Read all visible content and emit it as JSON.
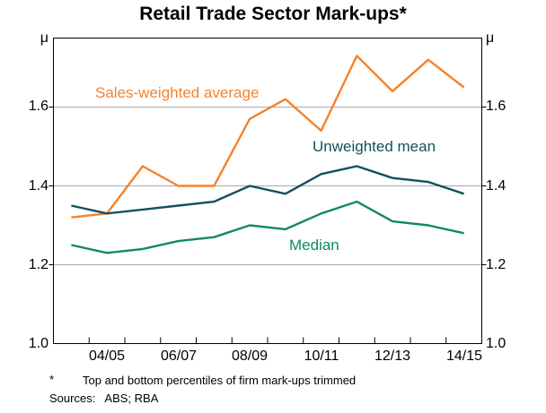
{
  "title": "Retail Trade Sector Mark-ups*",
  "axes": {
    "unit_left": "μ",
    "unit_right": "μ",
    "y_tick_labels": [
      "1.6",
      "1.4",
      "1.2",
      "1.0"
    ],
    "x_tick_labels": [
      "04/05",
      "06/07",
      "08/09",
      "10/11",
      "12/13",
      "14/15"
    ]
  },
  "chart_data": {
    "type": "line",
    "title": "Retail Trade Sector Mark-ups*",
    "x_categories": [
      "03/04",
      "04/05",
      "05/06",
      "06/07",
      "07/08",
      "08/09",
      "09/10",
      "10/11",
      "11/12",
      "12/13",
      "13/14",
      "14/15"
    ],
    "x_axis_labeled_ticks": [
      "04/05",
      "06/07",
      "08/09",
      "10/11",
      "12/13",
      "14/15"
    ],
    "ylim": [
      1.0,
      1.775
    ],
    "y_ticks": [
      1.6,
      1.4,
      1.2,
      1.0
    ],
    "y_gridlines": [
      1.6,
      1.4,
      1.2
    ],
    "y_unit": "μ",
    "grid": "horizontal",
    "legend_position": "inline-labels",
    "series": [
      {
        "name": "Sales-weighted average",
        "color": "#F5822B",
        "values": [
          1.32,
          1.33,
          1.45,
          1.4,
          1.4,
          1.57,
          1.62,
          1.54,
          1.73,
          1.64,
          1.72,
          1.65
        ]
      },
      {
        "name": "Unweighted mean",
        "color": "#15505E",
        "values": [
          1.35,
          1.33,
          1.34,
          1.35,
          1.36,
          1.4,
          1.38,
          1.43,
          1.45,
          1.42,
          1.41,
          1.38
        ]
      },
      {
        "name": "Median",
        "color": "#0F8A68",
        "values": [
          1.25,
          1.23,
          1.24,
          1.26,
          1.27,
          1.3,
          1.29,
          1.33,
          1.36,
          1.31,
          1.3,
          1.28
        ]
      }
    ]
  },
  "footnotes": {
    "asterisk": "*",
    "note": "Top and bottom percentiles of firm mark-ups trimmed",
    "sources": "Sources:   ABS; RBA"
  },
  "style": {
    "gridline_color": "#A9A9A9",
    "axis_color": "#000000"
  }
}
